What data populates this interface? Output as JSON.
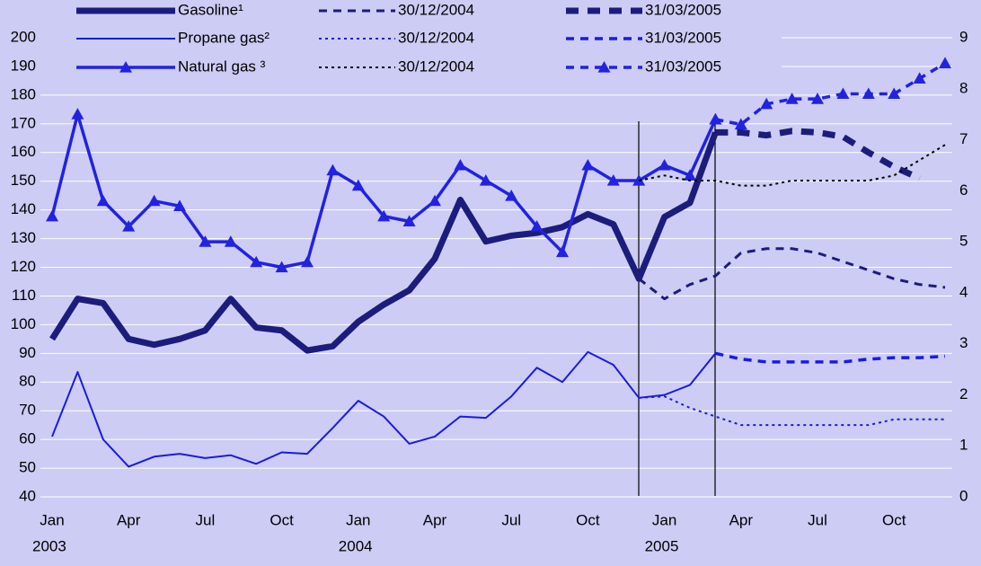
{
  "chart_data": {
    "type": "line",
    "categories": [
      "Jan",
      null,
      null,
      "Apr",
      null,
      null,
      "Jul",
      null,
      null,
      "Oct",
      null,
      null,
      "Jan",
      null,
      null,
      "Apr",
      null,
      null,
      "Jul",
      null,
      null,
      "Oct",
      null,
      null,
      "Jan",
      null,
      null,
      "Apr",
      null,
      null,
      "Jul",
      null,
      null,
      "Oct",
      null,
      null
    ],
    "x_years": [
      "2003",
      "2004",
      "2005"
    ],
    "ylim": [
      40,
      200
    ],
    "yticks": [
      40,
      50,
      60,
      70,
      80,
      90,
      100,
      110,
      120,
      130,
      140,
      150,
      160,
      170,
      180,
      190,
      200
    ],
    "y2lim": [
      0,
      9
    ],
    "y2ticks": [
      0,
      1,
      2,
      3,
      4,
      5,
      6,
      7,
      8,
      9
    ],
    "grid": true,
    "series": [
      {
        "name": "Gasoline¹",
        "color": "#1c1c7c",
        "width": 7,
        "dash": "solid",
        "values": [
          95,
          109,
          107.5,
          95,
          93,
          95,
          98,
          109,
          99,
          98,
          91,
          92.5,
          101,
          107,
          112,
          123,
          143.5,
          129,
          131,
          132,
          134,
          138.5,
          135,
          116,
          137.5,
          142.5,
          167,
          null,
          null,
          null,
          null,
          null,
          null,
          null,
          null,
          null
        ]
      },
      {
        "name": "30/12/2004",
        "color": "#1c1c7c",
        "width": 3,
        "dash": "dash",
        "values": [
          null,
          null,
          null,
          null,
          null,
          null,
          null,
          null,
          null,
          null,
          null,
          null,
          null,
          null,
          null,
          null,
          null,
          null,
          null,
          null,
          null,
          null,
          null,
          116,
          109,
          114,
          117,
          125,
          126.5,
          126.5,
          125,
          122,
          119,
          116,
          114,
          113
        ]
      },
      {
        "name": "31/03/2005",
        "color": "#1c1c7c",
        "width": 7,
        "dash": "longdash",
        "values": [
          null,
          null,
          null,
          null,
          null,
          null,
          null,
          null,
          null,
          null,
          null,
          null,
          null,
          null,
          null,
          null,
          null,
          null,
          null,
          null,
          null,
          null,
          null,
          null,
          null,
          null,
          167,
          167,
          166,
          167.5,
          167,
          165.5,
          160,
          155,
          151,
          null
        ]
      },
      {
        "name": "Propane gas²",
        "color": "#1a1ae6",
        "width": 2,
        "dash": "solid",
        "values": [
          61,
          83.5,
          60,
          50.5,
          54,
          55,
          53.5,
          54.5,
          51.5,
          55.5,
          55,
          64,
          73.5,
          68,
          58.5,
          61,
          68,
          67.5,
          75,
          85,
          80,
          90.5,
          86,
          74.5,
          75.5,
          79,
          90,
          null,
          null,
          null,
          null,
          null,
          null,
          null,
          null,
          null
        ]
      },
      {
        "name": "30/12/2004",
        "color": "#1a1ae6",
        "width": 2,
        "dash": "dot",
        "values": [
          null,
          null,
          null,
          null,
          null,
          null,
          null,
          null,
          null,
          null,
          null,
          null,
          null,
          null,
          null,
          null,
          null,
          null,
          null,
          null,
          null,
          null,
          null,
          74.5,
          75,
          71,
          68,
          65,
          65,
          65,
          65,
          65,
          65,
          67,
          67,
          67
        ]
      },
      {
        "name": "31/03/2005",
        "color": "#1a1ae6",
        "width": 3.5,
        "dash": "dash",
        "values": [
          null,
          null,
          null,
          null,
          null,
          null,
          null,
          null,
          null,
          null,
          null,
          null,
          null,
          null,
          null,
          null,
          null,
          null,
          null,
          null,
          null,
          null,
          null,
          null,
          null,
          null,
          90,
          88,
          87,
          87,
          87,
          87,
          88,
          88.5,
          88.5,
          89
        ]
      },
      {
        "name": "Natural gas ³",
        "color": "#2222e0",
        "width": 3.5,
        "dash": "solid",
        "marker": "triangle",
        "axis": "y2",
        "values": [
          5.5,
          7.5,
          5.8,
          5.3,
          5.8,
          5.7,
          5.0,
          5.0,
          4.6,
          4.5,
          4.6,
          6.4,
          6.1,
          5.5,
          5.4,
          5.8,
          6.5,
          6.2,
          5.9,
          5.3,
          4.8,
          6.5,
          6.2,
          6.2,
          6.5,
          6.3,
          7.4,
          null,
          null,
          null,
          null,
          null,
          null,
          null,
          null,
          null
        ]
      },
      {
        "name": "30/12/2004",
        "color": "#000000",
        "width": 2,
        "dash": "dot",
        "axis": "y2",
        "values": [
          null,
          null,
          null,
          null,
          null,
          null,
          null,
          null,
          null,
          null,
          null,
          null,
          null,
          null,
          null,
          null,
          null,
          null,
          null,
          null,
          null,
          null,
          null,
          6.2,
          6.3,
          6.2,
          6.2,
          6.1,
          6.1,
          6.2,
          6.2,
          6.2,
          6.2,
          6.3,
          6.6,
          6.9
        ]
      },
      {
        "name": "31/03/2005",
        "color": "#2222e0",
        "width": 3.5,
        "dash": "dash",
        "marker": "triangle",
        "axis": "y2",
        "values": [
          null,
          null,
          null,
          null,
          null,
          null,
          null,
          null,
          null,
          null,
          null,
          null,
          null,
          null,
          null,
          null,
          null,
          null,
          null,
          null,
          null,
          null,
          null,
          null,
          null,
          null,
          7.4,
          7.3,
          7.7,
          7.8,
          7.8,
          7.9,
          7.9,
          7.9,
          8.2,
          8.5
        ]
      }
    ]
  }
}
